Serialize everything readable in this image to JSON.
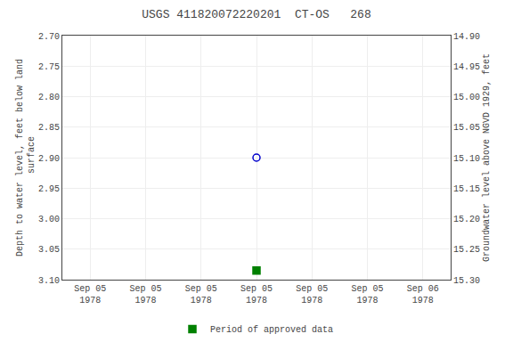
{
  "chart_data": {
    "type": "scatter",
    "title": "USGS 411820072220201  CT-OS   268",
    "y_label": "Depth to water level, feet below land\n surface",
    "y2_label": "Groundwater level above NGVD 1929, feet",
    "categories": [
      "Sep 05\n1978",
      "Sep 05\n1978",
      "Sep 05\n1978",
      "Sep 05\n1978",
      "Sep 05\n1978",
      "Sep 05\n1978",
      "Sep 06\n1978"
    ],
    "series": [
      {
        "color": "#0000cc",
        "marker": "circle-open",
        "values": [
          null,
          null,
          null,
          2.9,
          null,
          null,
          null
        ]
      },
      {
        "name": "Period of approved data",
        "color": "#008000",
        "marker": "square",
        "values": [
          null,
          null,
          null,
          3.085,
          null,
          null,
          null
        ]
      }
    ],
    "ylim": [
      3.1,
      2.7
    ],
    "yticks": [
      {
        "value": 2.7,
        "label": "2.70"
      },
      2.75,
      {
        "value": 2.8,
        "label": "2.80"
      },
      2.85,
      {
        "value": 2.9,
        "label": "2.90"
      },
      2.95,
      {
        "value": 3.0,
        "label": "3.00"
      },
      3.05,
      {
        "value": 3.1,
        "label": "3.10"
      }
    ],
    "y2lim": [
      15.3,
      14.9
    ],
    "y2ticks": [
      {
        "value": 15.3,
        "label": "15.30"
      },
      15.25,
      {
        "value": 15.2,
        "label": "15.20"
      },
      15.15,
      {
        "value": 15.1,
        "label": "15.10"
      },
      15.05,
      {
        "value": 15.0,
        "label": "15.00"
      },
      14.95,
      {
        "value": 14.9,
        "label": "14.90"
      }
    ],
    "grid": true,
    "legend": "bottom"
  }
}
